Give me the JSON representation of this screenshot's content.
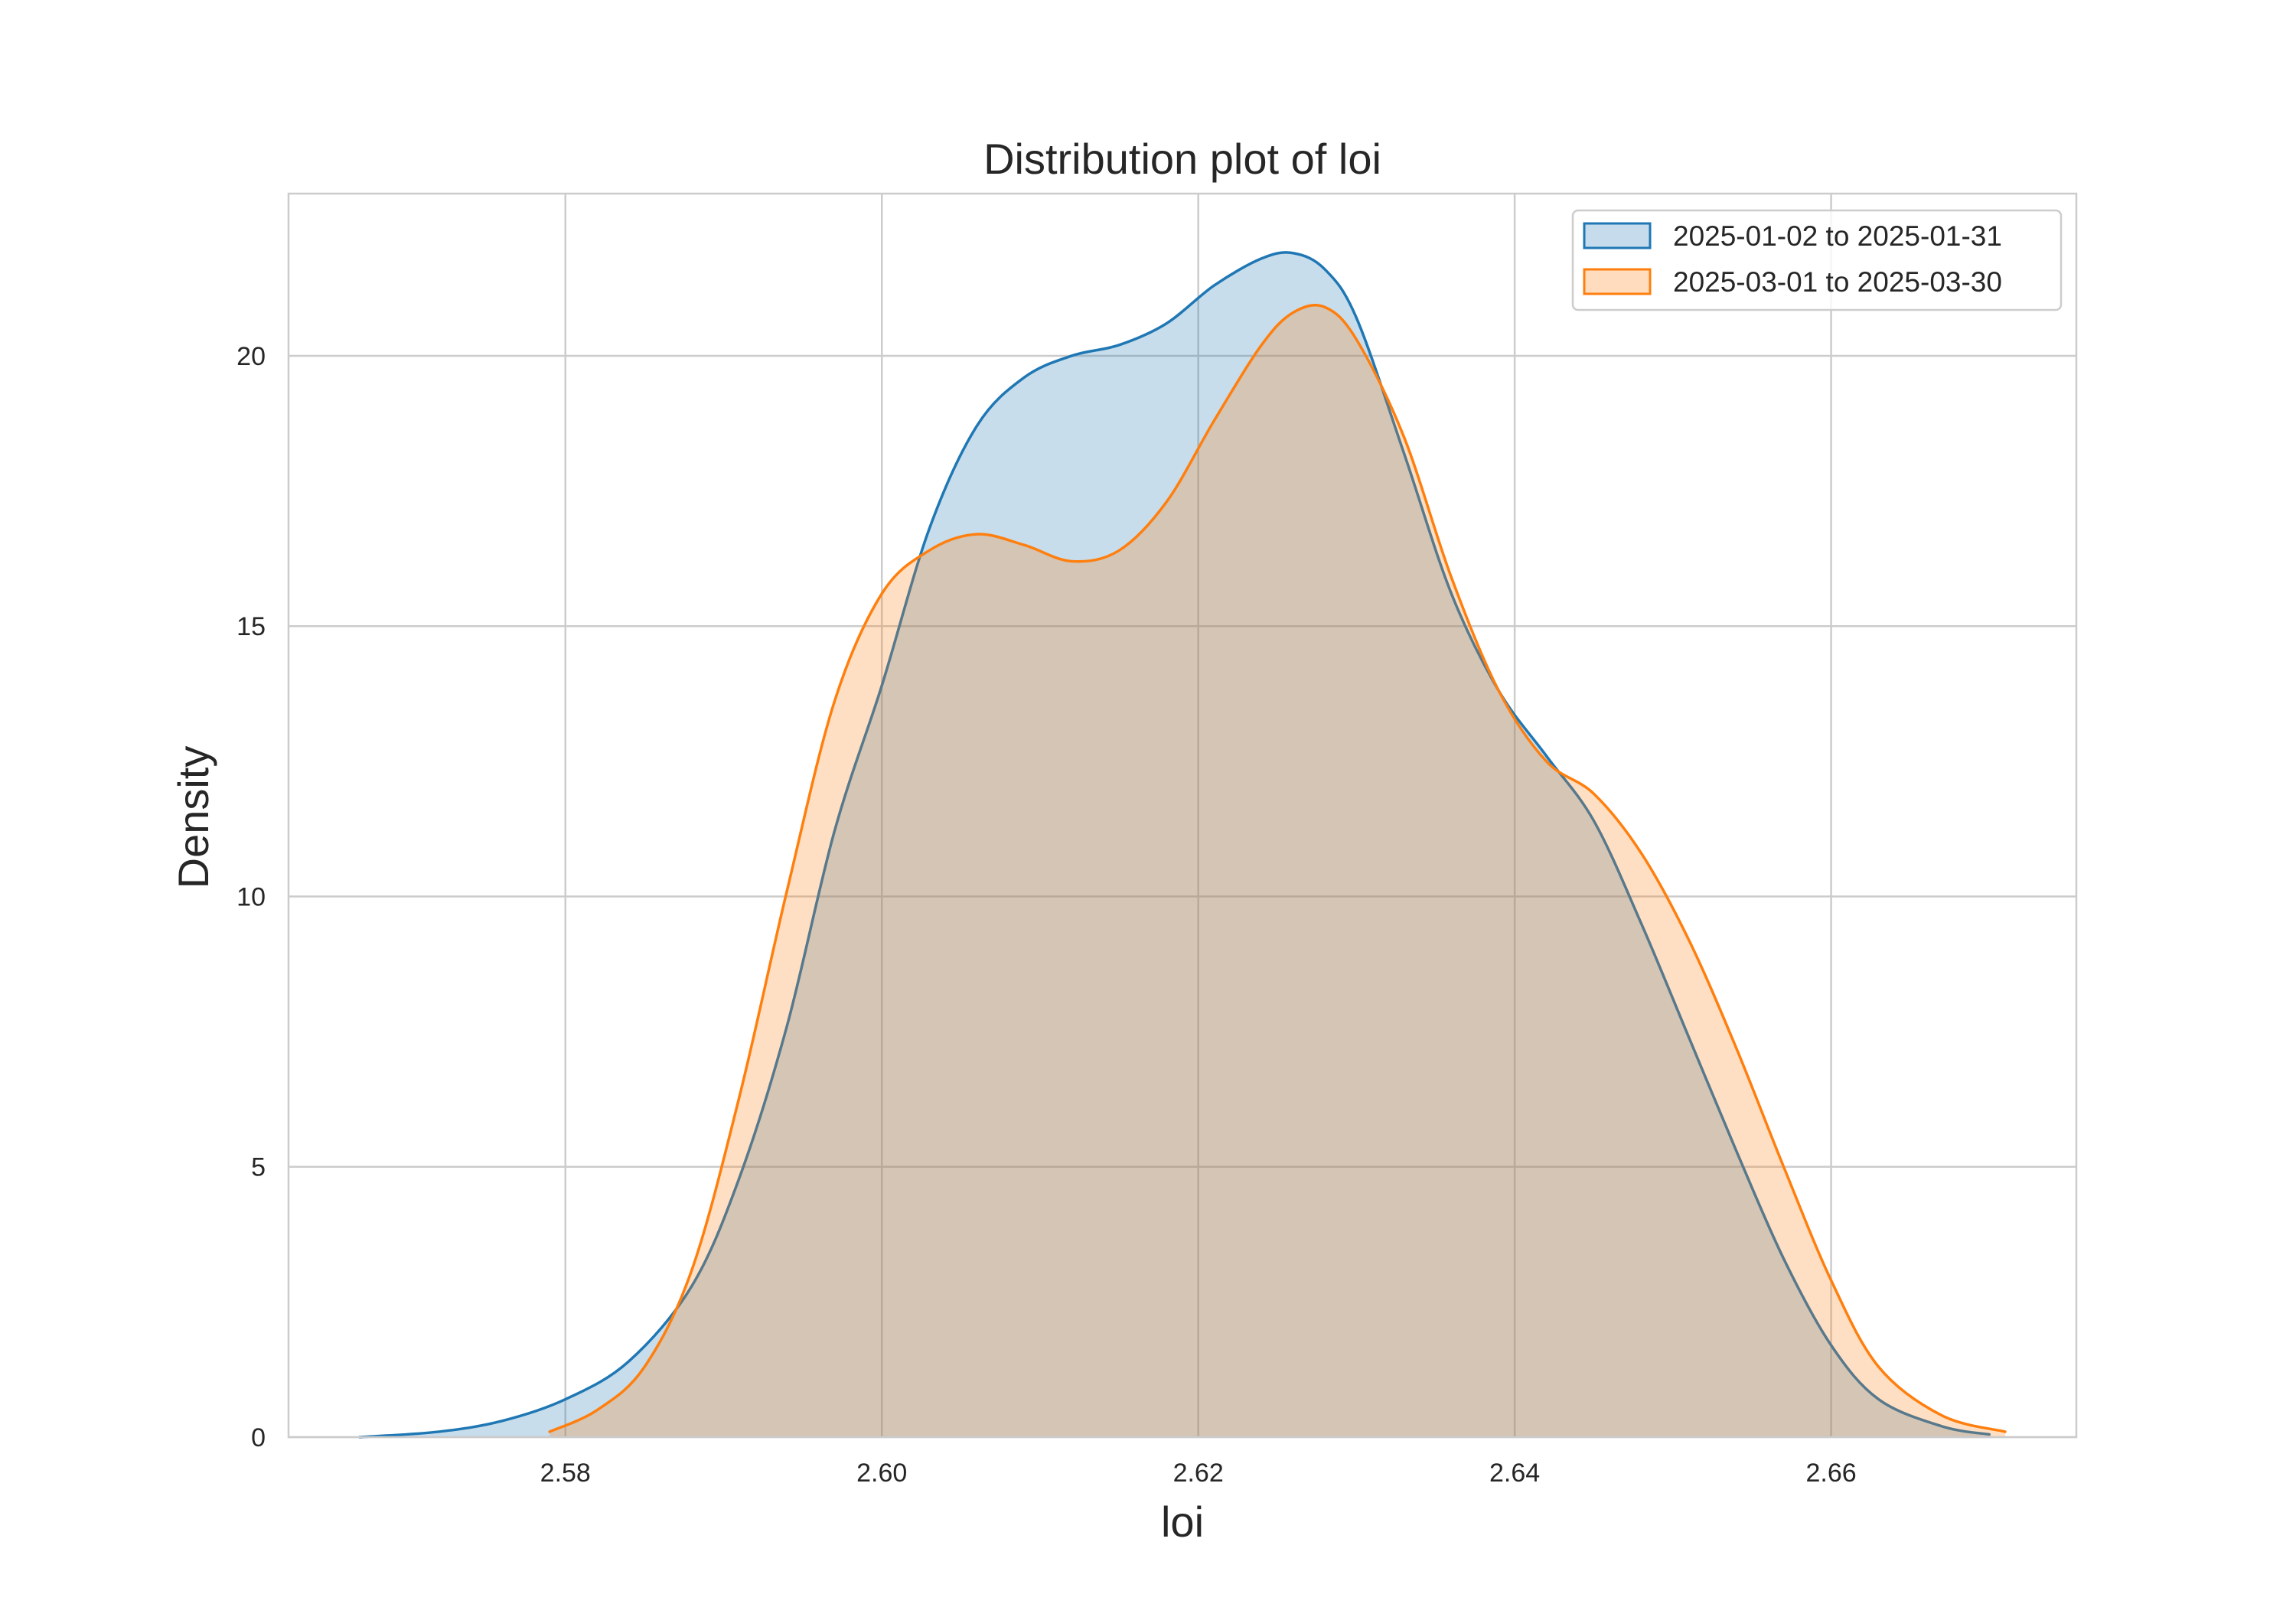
{
  "chart_data": {
    "type": "area",
    "title": "Distribution plot of loi",
    "xlabel": "loi",
    "ylabel": "Density",
    "xlim": [
      2.5625,
      2.6755
    ],
    "ylim": [
      0,
      23
    ],
    "xticks": [
      2.58,
      2.6,
      2.62,
      2.64,
      2.66
    ],
    "yticks": [
      0,
      5,
      10,
      15,
      20
    ],
    "xtick_labels": [
      "2.58",
      "2.60",
      "2.62",
      "2.64",
      "2.66"
    ],
    "ytick_labels": [
      "0",
      "5",
      "10",
      "15",
      "20"
    ],
    "grid": true,
    "legend_position": "top-right",
    "series": [
      {
        "name": "2025-01-02 to 2025-01-31",
        "color": "#1f77b4",
        "fill": "#c6dbec",
        "x": [
          2.567,
          2.572,
          2.576,
          2.58,
          2.584,
          2.588,
          2.591,
          2.594,
          2.597,
          2.6,
          2.603,
          2.606,
          2.609,
          2.612,
          2.615,
          2.618,
          2.621,
          2.624,
          2.626,
          2.628,
          2.63,
          2.633,
          2.636,
          2.639,
          2.642,
          2.645,
          2.648,
          2.651,
          2.654,
          2.657,
          2.66,
          2.663,
          2.667,
          2.67
        ],
        "y": [
          0.0,
          0.1,
          0.3,
          0.7,
          1.4,
          2.8,
          4.8,
          7.6,
          11.2,
          13.9,
          16.8,
          18.7,
          19.6,
          20.0,
          20.2,
          20.6,
          21.3,
          21.8,
          21.9,
          21.6,
          20.7,
          18.2,
          15.6,
          13.8,
          12.6,
          11.4,
          9.5,
          7.4,
          5.3,
          3.3,
          1.7,
          0.7,
          0.2,
          0.05
        ]
      },
      {
        "name": "2025-03-01 to 2025-03-30",
        "color": "#ff7f0e",
        "fill": "#ffdcbd",
        "x": [
          2.579,
          2.582,
          2.585,
          2.588,
          2.591,
          2.594,
          2.597,
          2.6,
          2.603,
          2.606,
          2.609,
          2.612,
          2.615,
          2.618,
          2.621,
          2.624,
          2.626,
          2.628,
          2.63,
          2.633,
          2.636,
          2.639,
          2.642,
          2.645,
          2.648,
          2.651,
          2.654,
          2.657,
          2.66,
          2.663,
          2.667,
          2.671
        ],
        "y": [
          0.1,
          0.5,
          1.3,
          3.1,
          6.3,
          10.1,
          13.6,
          15.6,
          16.4,
          16.7,
          16.5,
          16.2,
          16.4,
          17.3,
          18.8,
          20.2,
          20.8,
          20.9,
          20.3,
          18.5,
          15.9,
          13.8,
          12.5,
          11.9,
          10.8,
          9.2,
          7.2,
          5.0,
          2.9,
          1.3,
          0.4,
          0.1
        ]
      }
    ]
  }
}
